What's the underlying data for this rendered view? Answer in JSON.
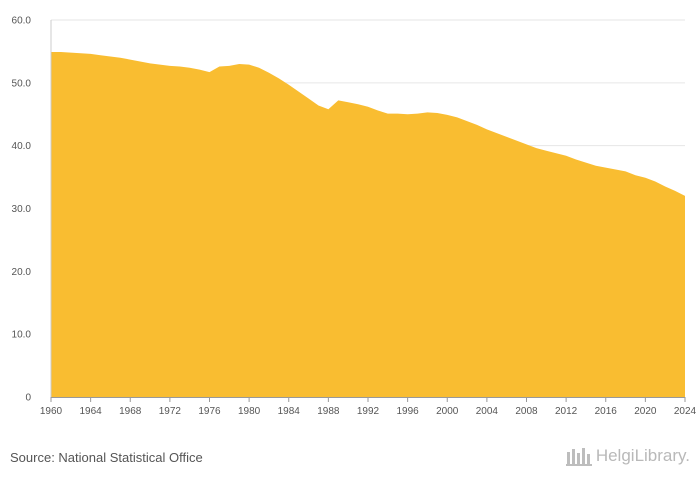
{
  "chart_data": {
    "type": "area",
    "title": "",
    "xlabel": "",
    "ylabel": "",
    "x": [
      1960,
      1961,
      1962,
      1963,
      1964,
      1965,
      1966,
      1967,
      1968,
      1969,
      1970,
      1971,
      1972,
      1973,
      1974,
      1975,
      1976,
      1977,
      1978,
      1979,
      1980,
      1981,
      1982,
      1983,
      1984,
      1985,
      1986,
      1987,
      1988,
      1989,
      1990,
      1991,
      1992,
      1993,
      1994,
      1995,
      1996,
      1997,
      1998,
      1999,
      2000,
      2001,
      2002,
      2003,
      2004,
      2005,
      2006,
      2007,
      2008,
      2009,
      2010,
      2011,
      2012,
      2013,
      2014,
      2015,
      2016,
      2017,
      2018,
      2019,
      2020,
      2021,
      2022,
      2023,
      2024
    ],
    "values": [
      54.9,
      54.9,
      54.8,
      54.7,
      54.6,
      54.4,
      54.2,
      54.0,
      53.7,
      53.4,
      53.1,
      52.9,
      52.7,
      52.6,
      52.4,
      52.1,
      51.7,
      52.6,
      52.7,
      53.0,
      52.9,
      52.4,
      51.6,
      50.7,
      49.7,
      48.6,
      47.5,
      46.4,
      45.8,
      47.2,
      46.9,
      46.6,
      46.2,
      45.6,
      45.1,
      45.1,
      45.0,
      45.1,
      45.3,
      45.2,
      44.9,
      44.5,
      43.9,
      43.3,
      42.6,
      42.0,
      41.4,
      40.8,
      40.2,
      39.6,
      39.2,
      38.8,
      38.4,
      37.8,
      37.3,
      36.8,
      36.5,
      36.2,
      35.9,
      35.3,
      34.9,
      34.3,
      33.5,
      32.8,
      32.0
    ],
    "ylim": [
      0,
      60
    ],
    "yticks": [
      "0",
      "10.0",
      "20.0",
      "30.0",
      "40.0",
      "50.0",
      "60.0"
    ],
    "xticks": [
      "1960",
      "1964",
      "1968",
      "1972",
      "1976",
      "1980",
      "1984",
      "1988",
      "1992",
      "1996",
      "2000",
      "2004",
      "2008",
      "2012",
      "2016",
      "2020",
      "2024"
    ],
    "fill_color": "#F9BD31",
    "grid": true
  },
  "footer": {
    "source": "Source: National Statistical Office",
    "brand": "HelgiLibrary."
  }
}
